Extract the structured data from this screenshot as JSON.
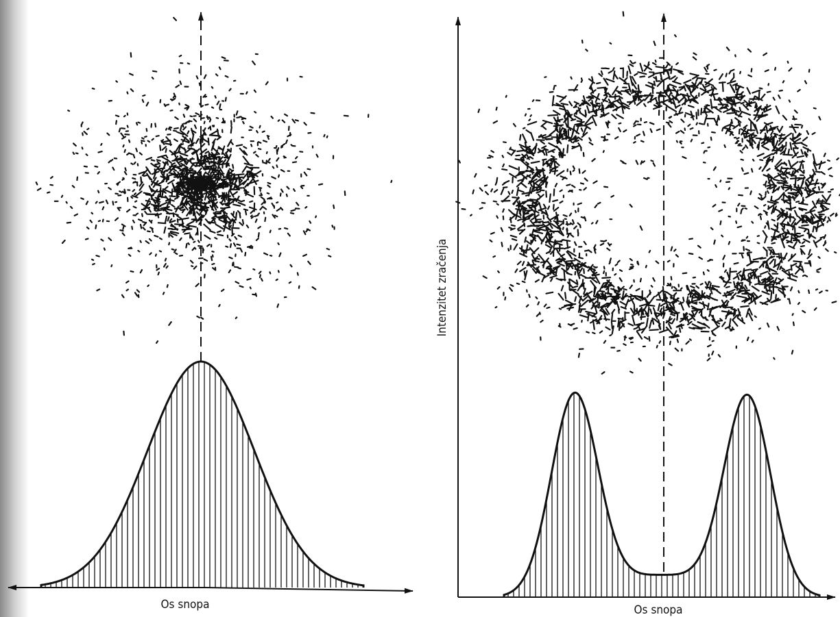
{
  "left_panel": {
    "x_axis_label": "Os snopa"
  },
  "right_panel": {
    "x_axis_label": "Os snopa",
    "y_axis_label": "Intenzitet zračenja"
  }
}
